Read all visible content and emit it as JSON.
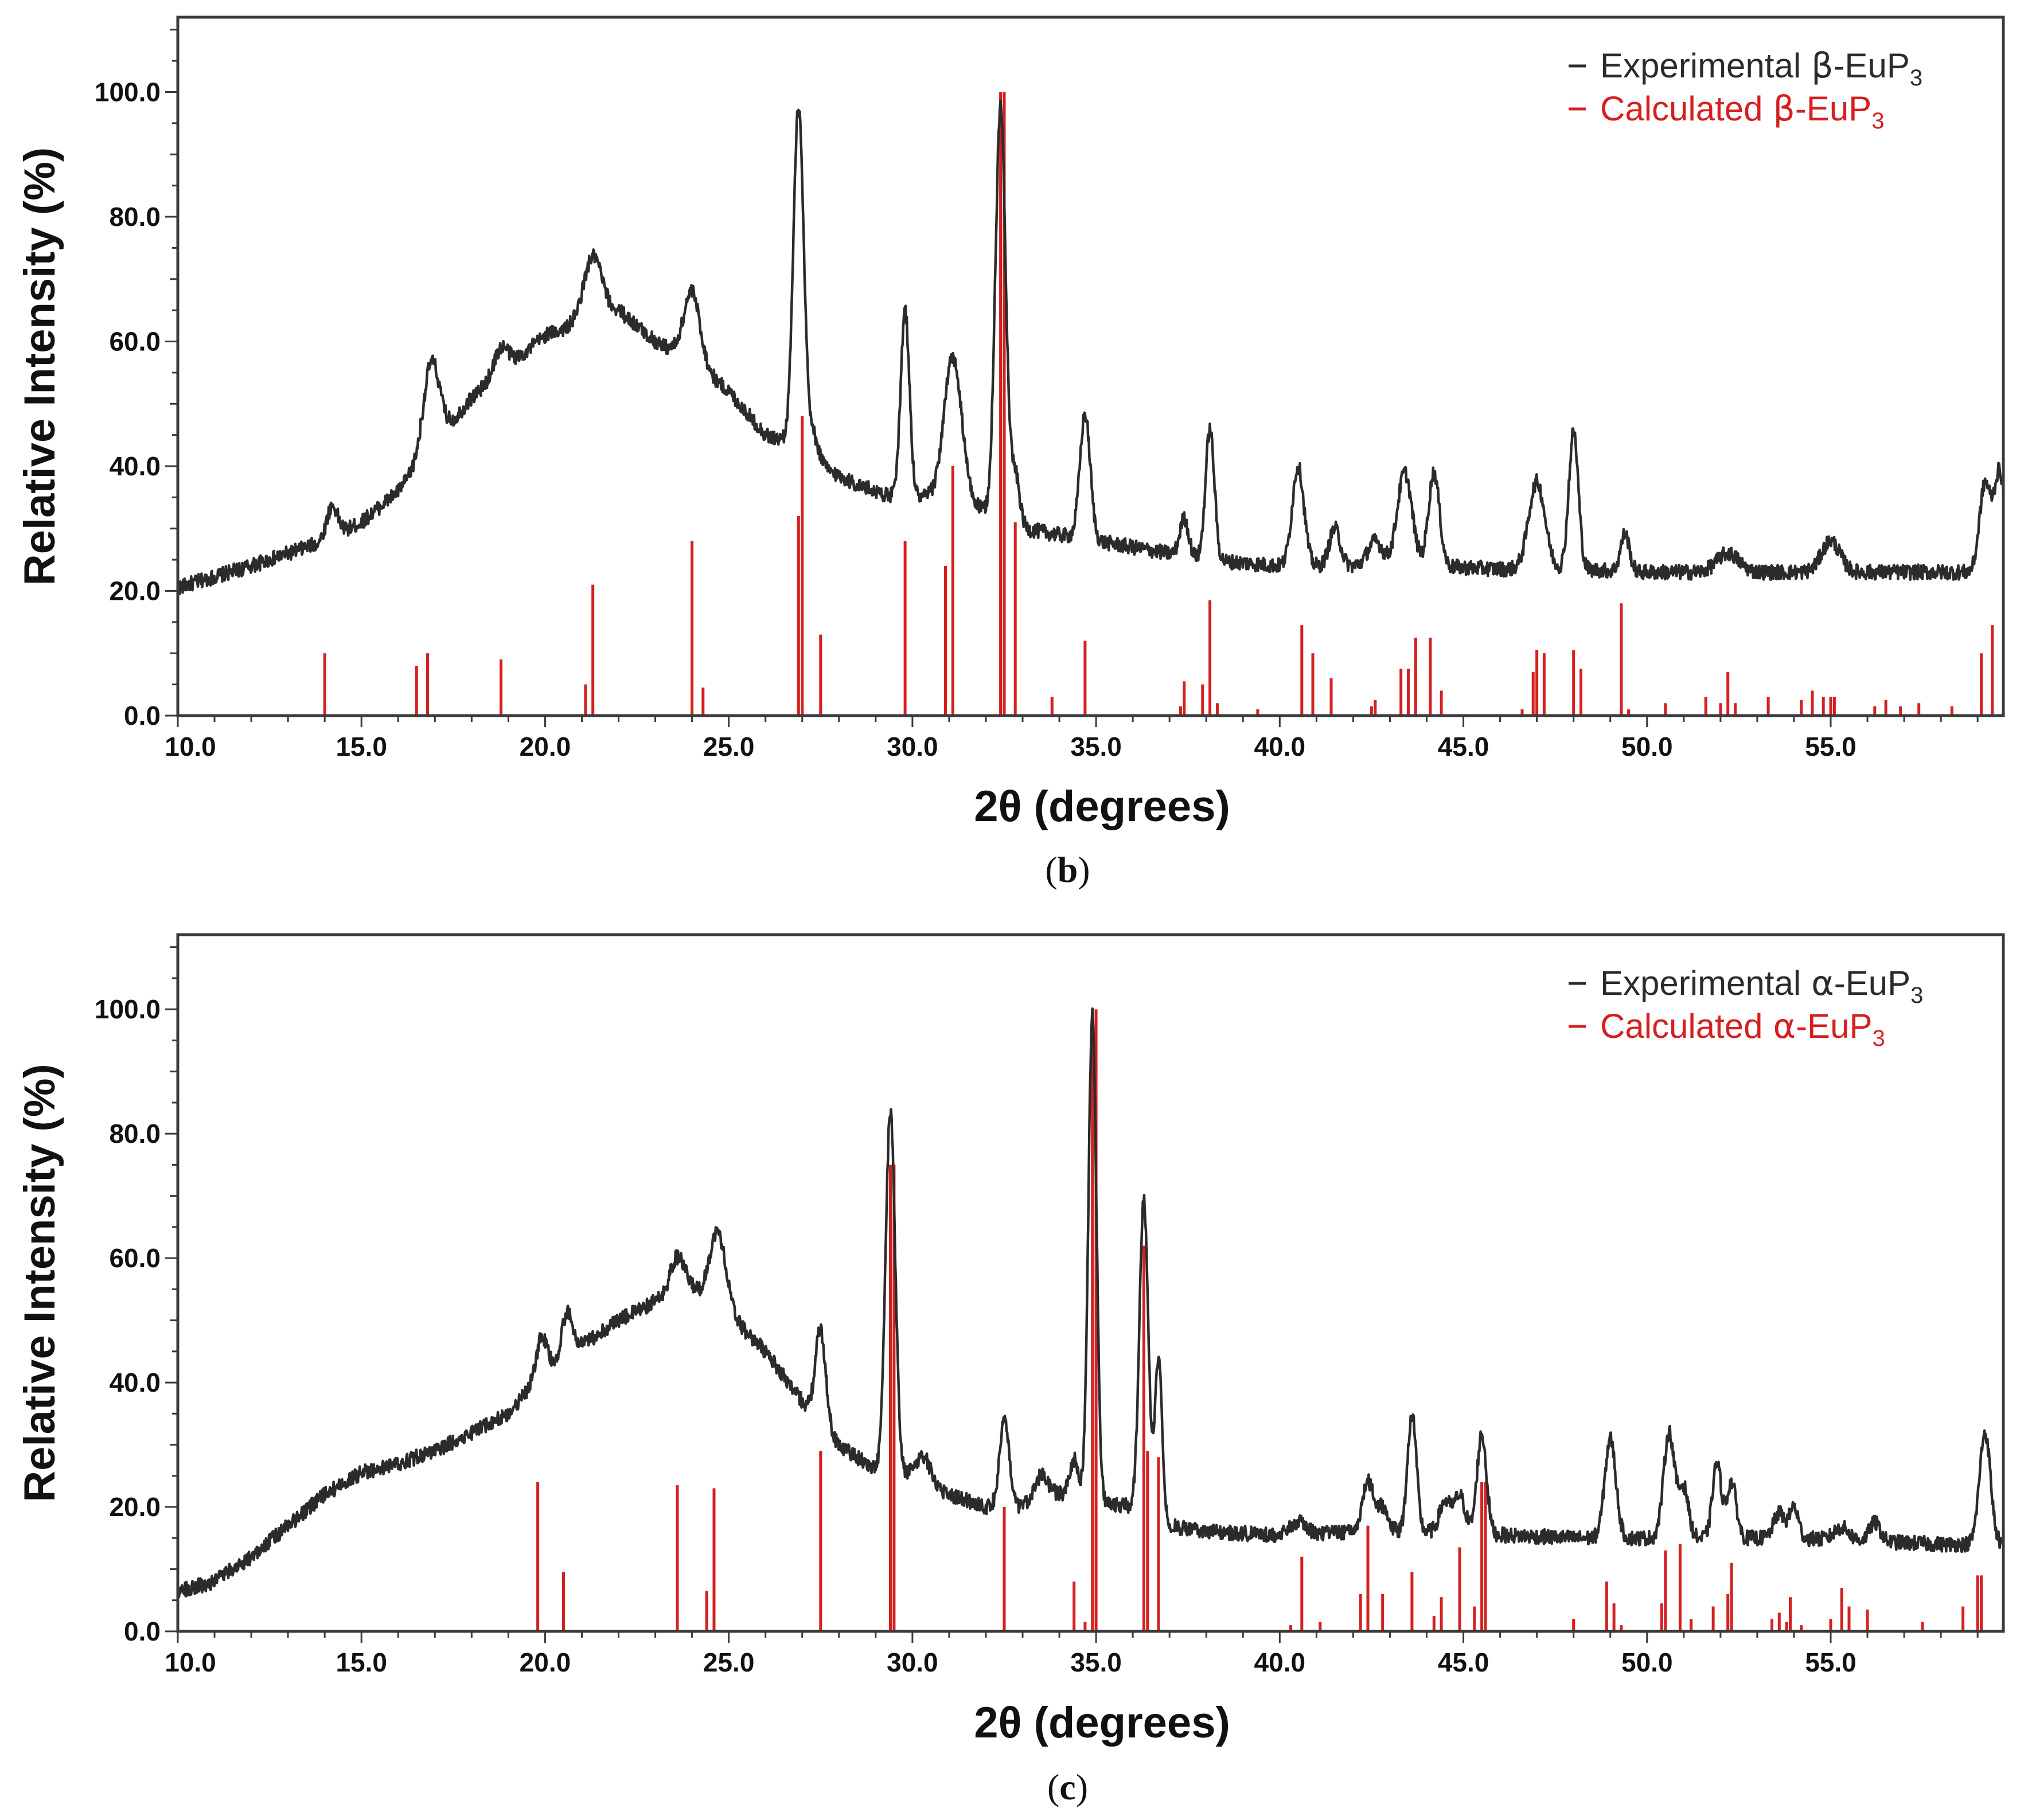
{
  "chart_data": [
    {
      "type": "line",
      "panel_label": "(b)",
      "xlabel": "2θ (degrees)",
      "ylabel": "Relative Intensity (%)",
      "xlim": [
        10.0,
        59.7
      ],
      "ylim": [
        0.0,
        112.0
      ],
      "x_ticks": [
        "10.0",
        "15.0",
        "20.0",
        "25.0",
        "30.0",
        "35.0",
        "40.0",
        "45.0",
        "50.0",
        "55.0"
      ],
      "y_ticks": [
        "0.0",
        "20.0",
        "40.0",
        "60.0",
        "80.0",
        "100.0"
      ],
      "legend_position": "top-right",
      "legend": [
        {
          "name": "Experimental",
          "phase": "β",
          "suffix": "-EuP",
          "sub": "3",
          "color": "#2b2b2b"
        },
        {
          "name": "Calculated",
          "phase": "β",
          "suffix": "-EuP",
          "sub": "3",
          "color": "#d42020"
        }
      ],
      "experimental": {
        "baseline": [
          [
            10,
            20.5
          ],
          [
            12,
            24
          ],
          [
            14,
            28
          ],
          [
            15,
            31
          ],
          [
            16,
            36
          ],
          [
            18,
            51
          ],
          [
            20,
            61
          ],
          [
            22,
            65
          ],
          [
            23,
            60
          ],
          [
            24,
            57
          ],
          [
            25,
            52
          ],
          [
            26,
            45
          ],
          [
            26.5,
            44
          ],
          [
            27.5,
            40
          ],
          [
            28.5,
            37
          ],
          [
            29.5,
            35
          ],
          [
            30.5,
            35
          ],
          [
            31.5,
            34
          ],
          [
            33,
            30
          ],
          [
            34,
            29
          ],
          [
            35,
            28
          ],
          [
            36,
            27
          ],
          [
            38,
            25
          ],
          [
            40,
            24
          ],
          [
            42,
            24
          ],
          [
            44,
            24
          ],
          [
            46,
            23.5
          ],
          [
            48,
            23.5
          ],
          [
            50,
            23
          ],
          [
            52,
            23
          ],
          [
            54,
            23
          ],
          [
            56,
            23
          ],
          [
            58,
            23
          ],
          [
            59.7,
            23
          ]
        ],
        "peaks": [
          [
            14.2,
            5,
            0.15
          ],
          [
            16.9,
            14,
            0.22
          ],
          [
            18.8,
            4,
            0.2
          ],
          [
            21.3,
            10,
            0.25
          ],
          [
            24.0,
            11,
            0.22
          ],
          [
            26.9,
            55,
            0.14
          ],
          [
            27.3,
            4,
            0.15
          ],
          [
            29.8,
            30,
            0.12
          ],
          [
            31.1,
            23,
            0.24
          ],
          [
            32.4,
            66,
            0.14
          ],
          [
            32.8,
            8,
            0.12
          ],
          [
            34.7,
            20,
            0.14
          ],
          [
            37.4,
            6,
            0.12
          ],
          [
            38.1,
            21,
            0.12
          ],
          [
            40.5,
            16,
            0.16
          ],
          [
            41.5,
            6,
            0.15
          ],
          [
            42.6,
            4,
            0.2
          ],
          [
            43.4,
            15,
            0.2
          ],
          [
            44.2,
            15,
            0.15
          ],
          [
            47.0,
            14,
            0.22
          ],
          [
            48.0,
            22,
            0.13
          ],
          [
            49.4,
            6,
            0.12
          ],
          [
            52.2,
            3,
            0.3
          ],
          [
            55.0,
            5,
            0.25
          ],
          [
            59.2,
            14,
            0.15
          ],
          [
            59.6,
            16,
            0.15
          ]
        ]
      },
      "calculated": [
        [
          14.0,
          10
        ],
        [
          16.5,
          8
        ],
        [
          16.8,
          10
        ],
        [
          18.8,
          9
        ],
        [
          21.1,
          5
        ],
        [
          21.3,
          21
        ],
        [
          24.0,
          28
        ],
        [
          24.3,
          4.5
        ],
        [
          26.9,
          32
        ],
        [
          27.0,
          48
        ],
        [
          27.5,
          13
        ],
        [
          29.8,
          28
        ],
        [
          30.9,
          24
        ],
        [
          31.1,
          40
        ],
        [
          32.4,
          100
        ],
        [
          32.5,
          100
        ],
        [
          32.8,
          31
        ],
        [
          33.8,
          3
        ],
        [
          34.7,
          12
        ],
        [
          37.3,
          1.5
        ],
        [
          37.4,
          5.5
        ],
        [
          37.9,
          5
        ],
        [
          38.1,
          18.5
        ],
        [
          38.3,
          2
        ],
        [
          39.4,
          1
        ],
        [
          40.6,
          14.5
        ],
        [
          40.9,
          10
        ],
        [
          41.4,
          6
        ],
        [
          42.5,
          1.5
        ],
        [
          42.6,
          2.5
        ],
        [
          43.3,
          7.5
        ],
        [
          43.5,
          7.5
        ],
        [
          43.7,
          12.5
        ],
        [
          44.1,
          12.5
        ],
        [
          44.4,
          4
        ],
        [
          46.6,
          1
        ],
        [
          46.9,
          7
        ],
        [
          47.0,
          10.5
        ],
        [
          47.2,
          10
        ],
        [
          48.0,
          10.5
        ],
        [
          48.2,
          7.5
        ],
        [
          49.3,
          18
        ],
        [
          49.5,
          1
        ],
        [
          50.5,
          2
        ],
        [
          51.6,
          3
        ],
        [
          52.0,
          2
        ],
        [
          52.2,
          7
        ],
        [
          52.4,
          2
        ],
        [
          53.3,
          3
        ],
        [
          54.2,
          2.5
        ],
        [
          54.5,
          4
        ],
        [
          54.8,
          3
        ],
        [
          55.0,
          3
        ],
        [
          55.1,
          3
        ],
        [
          56.2,
          1.5
        ],
        [
          56.5,
          2.5
        ],
        [
          56.9,
          1.5
        ],
        [
          57.4,
          2
        ],
        [
          58.3,
          1.5
        ],
        [
          59.1,
          10
        ],
        [
          59.4,
          14.5
        ]
      ]
    },
    {
      "type": "line",
      "panel_label": "(c)",
      "xlabel": "2θ (degrees)",
      "ylabel": "Relative Intensity (%)",
      "xlim": [
        10.0,
        59.7
      ],
      "ylim": [
        0.0,
        112.0
      ],
      "x_ticks": [
        "10.0",
        "15.0",
        "20.0",
        "25.0",
        "30.0",
        "35.0",
        "40.0",
        "45.0",
        "50.0",
        "55.0"
      ],
      "y_ticks": [
        "0.0",
        "20.0",
        "40.0",
        "60.0",
        "80.0",
        "100.0"
      ],
      "legend_position": "top-right",
      "legend": [
        {
          "name": "Experimental",
          "phase": "α",
          "suffix": "-EuP",
          "sub": "3",
          "color": "#2b2b2b"
        },
        {
          "name": "Calculated",
          "phase": "α",
          "suffix": "-EuP",
          "sub": "3",
          "color": "#d42020"
        }
      ],
      "experimental": {
        "baseline": [
          [
            10,
            6.5
          ],
          [
            11,
            8
          ],
          [
            12,
            12
          ],
          [
            13,
            17
          ],
          [
            14,
            22
          ],
          [
            15,
            25.5
          ],
          [
            16,
            27
          ],
          [
            17,
            29
          ],
          [
            18,
            32
          ],
          [
            19,
            35
          ],
          [
            20,
            42
          ],
          [
            21,
            46
          ],
          [
            22,
            50
          ],
          [
            23,
            53
          ],
          [
            24,
            55
          ],
          [
            25,
            51
          ],
          [
            26,
            45
          ],
          [
            27,
            37
          ],
          [
            28,
            30
          ],
          [
            29,
            26
          ],
          [
            30,
            25
          ],
          [
            31,
            22
          ],
          [
            32,
            20
          ],
          [
            33,
            20
          ],
          [
            34,
            22
          ],
          [
            35,
            21
          ],
          [
            36,
            20
          ],
          [
            37,
            17
          ],
          [
            38,
            16
          ],
          [
            40,
            15.5
          ],
          [
            42,
            16
          ],
          [
            44,
            16
          ],
          [
            46,
            15.5
          ],
          [
            48,
            15
          ],
          [
            50,
            15
          ],
          [
            52,
            15
          ],
          [
            54,
            15
          ],
          [
            56,
            14.5
          ],
          [
            58,
            14
          ],
          [
            59.7,
            14
          ]
        ],
        "peaks": [
          [
            19.9,
            6,
            0.14
          ],
          [
            20.6,
            7,
            0.14
          ],
          [
            23.6,
            6,
            0.2
          ],
          [
            24.7,
            12,
            0.22
          ],
          [
            27.5,
            15,
            0.14
          ],
          [
            29.4,
            58,
            0.13
          ],
          [
            30.3,
            4,
            0.2
          ],
          [
            32.5,
            14,
            0.13
          ],
          [
            33.5,
            4,
            0.2
          ],
          [
            34.4,
            6,
            0.12
          ],
          [
            34.9,
            78,
            0.11
          ],
          [
            36.3,
            50,
            0.12
          ],
          [
            36.7,
            26,
            0.1
          ],
          [
            40.5,
            2,
            0.2
          ],
          [
            42.4,
            8,
            0.15
          ],
          [
            42.8,
            4,
            0.15
          ],
          [
            43.6,
            19,
            0.12
          ],
          [
            44.5,
            5,
            0.15
          ],
          [
            44.9,
            6,
            0.15
          ],
          [
            45.5,
            16,
            0.13
          ],
          [
            49.0,
            16,
            0.15
          ],
          [
            50.6,
            17,
            0.15
          ],
          [
            51.0,
            8,
            0.13
          ],
          [
            51.9,
            12,
            0.12
          ],
          [
            52.3,
            9,
            0.13
          ],
          [
            53.6,
            4,
            0.15
          ],
          [
            54.0,
            5,
            0.12
          ],
          [
            55.3,
            2,
            0.2
          ],
          [
            56.2,
            3,
            0.15
          ],
          [
            59.2,
            18,
            0.15
          ]
        ]
      },
      "calculated": [
        [
          19.8,
          24
        ],
        [
          20.5,
          9.5
        ],
        [
          23.6,
          23.5
        ],
        [
          24.4,
          6.5
        ],
        [
          24.6,
          23
        ],
        [
          27.5,
          29
        ],
        [
          29.4,
          75
        ],
        [
          29.5,
          75
        ],
        [
          32.5,
          20
        ],
        [
          34.4,
          8
        ],
        [
          34.7,
          1.5
        ],
        [
          34.9,
          100
        ],
        [
          35.0,
          100
        ],
        [
          36.3,
          62
        ],
        [
          36.4,
          29
        ],
        [
          36.7,
          28
        ],
        [
          40.3,
          1
        ],
        [
          40.6,
          12
        ],
        [
          41.1,
          1.5
        ],
        [
          42.2,
          6
        ],
        [
          42.4,
          17
        ],
        [
          42.8,
          6
        ],
        [
          43.6,
          9.5
        ],
        [
          44.2,
          2.5
        ],
        [
          44.4,
          5.5
        ],
        [
          44.9,
          13.5
        ],
        [
          45.3,
          4
        ],
        [
          45.5,
          24
        ],
        [
          45.6,
          24
        ],
        [
          48.0,
          2
        ],
        [
          48.9,
          8
        ],
        [
          49.1,
          4.5
        ],
        [
          49.3,
          1
        ],
        [
          50.4,
          4.5
        ],
        [
          50.5,
          13
        ],
        [
          50.9,
          14
        ],
        [
          51.2,
          2
        ],
        [
          51.8,
          4
        ],
        [
          52.2,
          6
        ],
        [
          52.3,
          11
        ],
        [
          53.4,
          2
        ],
        [
          53.6,
          3
        ],
        [
          53.8,
          1.5
        ],
        [
          53.9,
          5.5
        ],
        [
          54.2,
          1
        ],
        [
          55.0,
          2
        ],
        [
          55.3,
          7
        ],
        [
          55.5,
          4
        ],
        [
          56.0,
          3.5
        ],
        [
          57.5,
          1.5
        ],
        [
          58.6,
          4
        ],
        [
          59.0,
          9
        ],
        [
          59.1,
          9
        ]
      ]
    }
  ]
}
